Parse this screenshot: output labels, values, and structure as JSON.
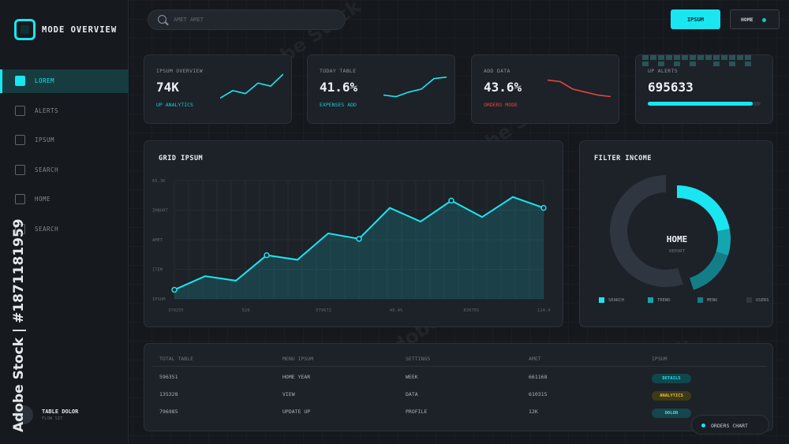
{
  "app": {
    "title": "MODE OVERVIEW",
    "logo_icon": "square-logo-icon"
  },
  "sidebar": {
    "items": [
      {
        "label": "LOREM",
        "active": true
      },
      {
        "label": "ALERTS",
        "active": false
      },
      {
        "label": "IPSUM",
        "active": false
      },
      {
        "label": "SEARCH",
        "active": false
      },
      {
        "label": "HOME",
        "active": false
      },
      {
        "label": "SEARCH",
        "active": false
      }
    ],
    "user": {
      "name": "TABLE DOLOR",
      "subtitle": "FLOW SIT"
    }
  },
  "header": {
    "search": {
      "placeholder": "AMET AMET",
      "value": ""
    },
    "primary_button": "IPSUM",
    "secondary_button": "HOME"
  },
  "stats": [
    {
      "title": "IPSUM OVERVIEW",
      "value": "74K",
      "subtitle": "UP ANALYTICS",
      "trend": [
        0.2,
        0.45,
        0.35,
        0.7,
        0.6,
        1.0
      ],
      "color": "#19e6f0"
    },
    {
      "title": "TODAY TABLE",
      "value": "41.6%",
      "subtitle": "EXPENSES ADD",
      "trend": [
        0.3,
        0.25,
        0.4,
        0.5,
        0.85,
        0.9
      ],
      "color": "#19e6f0"
    },
    {
      "title": "ADD DATA",
      "value": "43.6%",
      "subtitle": "ORDERS MODE",
      "trend": [
        0.8,
        0.75,
        0.5,
        0.4,
        0.3,
        0.25
      ],
      "color": "#e0473f"
    },
    {
      "title": "UP ALERTS",
      "value": "695633",
      "progress": 0.93
    }
  ],
  "grid_chart": {
    "title": "GRID IPSUM",
    "y_ticks": [
      "65.3K",
      "IMBORT",
      "AMET",
      "ITEM",
      "IPSUM"
    ],
    "x_ticks": [
      "370255",
      "528",
      "579672",
      "49.4%",
      "830765",
      "114.4"
    ],
    "chart_data": {
      "type": "area",
      "values": [
        10,
        25,
        20,
        48,
        43,
        72,
        66,
        100,
        85,
        108,
        90,
        112,
        100
      ],
      "marked": [
        0,
        3,
        6,
        9,
        12
      ],
      "ylim": [
        0,
        130
      ],
      "color": "#19e6f0"
    }
  },
  "filter_income": {
    "title": "FILTER INCOME",
    "center_label": "HOME",
    "center_sub": "REPORT",
    "chart_data": {
      "type": "pie",
      "slices": [
        {
          "name": "SEARCH",
          "value": 22,
          "color": "#19e6f0"
        },
        {
          "name": "TREND",
          "value": 8,
          "color": "#13a6b1"
        },
        {
          "name": "MENU",
          "value": 15,
          "color": "#137e88"
        },
        {
          "name": "USERS",
          "value": 55,
          "color": "#30363f"
        }
      ]
    }
  },
  "table": {
    "headers": [
      "TOTAL TABLE",
      "MENU IPSUM",
      "SETTINGS",
      "AMET",
      "IPSUM"
    ],
    "rows": [
      {
        "total": "596351",
        "menu": "HOME YEAR",
        "settings": "WEEK",
        "amet": "661168",
        "tag": "DETAILS",
        "tag_style": "teal"
      },
      {
        "total": "135328",
        "menu": "VIEW",
        "settings": "DATA",
        "amet": "610315",
        "tag": "ANALYTICS",
        "tag_style": "gold"
      },
      {
        "total": "796985",
        "menu": "UPDATE UP",
        "settings": "PROFILE",
        "amet": "12K",
        "tag": "DOLOR",
        "tag_style": "blue"
      }
    ]
  },
  "orders_chip": "ORDERS CHART",
  "watermark": {
    "side_text": "Adobe Stock | #1871181959",
    "tile_text": "Adobe Stock"
  }
}
